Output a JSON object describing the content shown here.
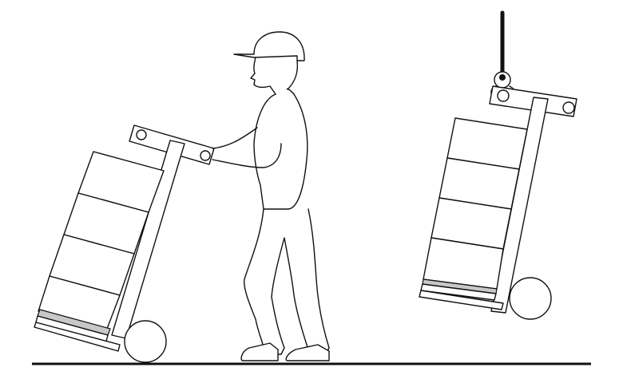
{
  "illustration": {
    "scenes": [
      {
        "name": "worker-pushing-hand-truck",
        "boxes_on_truck": 4
      },
      {
        "name": "hand-truck-suspended-from-crane-hook",
        "boxes_on_truck": 4
      }
    ],
    "colors": {
      "line": "#111111",
      "background": "#ffffff",
      "plate": "#c8c8c8",
      "cable": "#111111"
    },
    "icons": [
      "hard-hat-icon",
      "hand-truck-icon",
      "crane-hook-icon",
      "box-icon",
      "wheel-icon"
    ]
  }
}
